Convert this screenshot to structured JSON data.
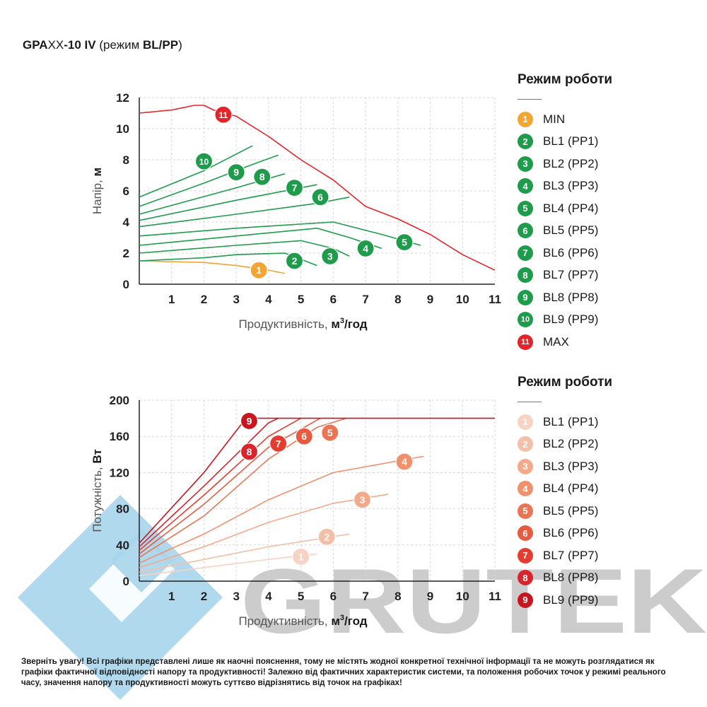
{
  "title": {
    "p1": "GPA",
    "p2": "XX",
    "p3": "-10 IV",
    "p4": " (режим ",
    "p5": "BL/PP",
    "p6": ")"
  },
  "watermark_text": "GRUTEK",
  "note": "Зверніть увагу! Всі графіки представлені лише як наочні пояснення, тому не містять жодної конкретної технічної інформації та не можуть розглядатися як графіки фактичної відповідності напору та продуктивності! Залежно від фактичних характеристик системи, та положення робочих точок у режимі реального часу, значення напору та продуктивності можуть суттєво відрізнятись від точок на графіках!",
  "legend_head": {
    "title": "Режим роботи",
    "items": [
      {
        "num": "1",
        "label": "MIN",
        "color": "#f2a531"
      },
      {
        "num": "2",
        "label": "BL1 (PP1)",
        "color": "#1e9c4b"
      },
      {
        "num": "3",
        "label": "BL2 (PP2)",
        "color": "#1e9c4b"
      },
      {
        "num": "4",
        "label": "BL3 (PP3)",
        "color": "#1e9c4b"
      },
      {
        "num": "5",
        "label": "BL4 (PP4)",
        "color": "#1e9c4b"
      },
      {
        "num": "6",
        "label": "BL5 (PP5)",
        "color": "#1e9c4b"
      },
      {
        "num": "7",
        "label": "BL6 (PP6)",
        "color": "#1e9c4b"
      },
      {
        "num": "8",
        "label": "BL7 (PP7)",
        "color": "#1e9c4b"
      },
      {
        "num": "9",
        "label": "BL8 (PP8)",
        "color": "#1e9c4b"
      },
      {
        "num": "10",
        "label": "BL9 (PP9)",
        "color": "#1e9c4b"
      },
      {
        "num": "11",
        "label": "MAX",
        "color": "#e5242a"
      }
    ]
  },
  "legend_power": {
    "title": "Режим роботи",
    "items": [
      {
        "num": "1",
        "label": "BL1 (PP1)",
        "color": "#f8d3c3"
      },
      {
        "num": "2",
        "label": "BL2 (PP2)",
        "color": "#f5bea6"
      },
      {
        "num": "3",
        "label": "BL3 (PP3)",
        "color": "#f3a98a"
      },
      {
        "num": "4",
        "label": "BL4 (PP4)",
        "color": "#f0906d"
      },
      {
        "num": "5",
        "label": "BL5 (PP5)",
        "color": "#ec7452"
      },
      {
        "num": "6",
        "label": "BL6 (PP6)",
        "color": "#e85a40"
      },
      {
        "num": "7",
        "label": "BL7 (PP7)",
        "color": "#e43d2f"
      },
      {
        "num": "8",
        "label": "BL8 (PP8)",
        "color": "#d8242a"
      },
      {
        "num": "9",
        "label": "BL9 (PP9)",
        "color": "#c8151f"
      }
    ]
  },
  "chart_data": [
    {
      "type": "line",
      "xlabel": "Продуктивність, м³/год",
      "xlabel_plain": "Продуктивність,",
      "xlabel_bold": "м",
      "xlabel_sup": "3",
      "xlabel_unit": "/год",
      "ylabel_plain": "Напір,",
      "ylabel_bold": "м",
      "xlim": [
        0,
        11
      ],
      "ylim": [
        0,
        12
      ],
      "xticks": [
        1,
        2,
        3,
        4,
        5,
        6,
        7,
        8,
        9,
        10,
        11
      ],
      "yticks": [
        0,
        2,
        4,
        6,
        8,
        10,
        12
      ],
      "grid": true,
      "series": [
        {
          "name": "1",
          "color": "#f2a531",
          "marker": [
            3.7,
            0.9
          ],
          "points": [
            [
              0,
              1.5
            ],
            [
              2,
              1.4
            ],
            [
              3,
              1.2
            ],
            [
              4,
              0.9
            ],
            [
              4.5,
              0.7
            ]
          ]
        },
        {
          "name": "2",
          "color": "#1e9c4b",
          "marker": [
            4.8,
            1.5
          ],
          "points": [
            [
              0,
              1.5
            ],
            [
              2,
              1.7
            ],
            [
              3,
              1.9
            ],
            [
              4.5,
              2.0
            ],
            [
              5,
              1.6
            ],
            [
              5.5,
              1.2
            ]
          ]
        },
        {
          "name": "3",
          "color": "#1e9c4b",
          "marker": [
            5.9,
            1.8
          ],
          "points": [
            [
              0,
              2.0
            ],
            [
              3,
              2.5
            ],
            [
              5,
              2.8
            ],
            [
              6,
              2.3
            ],
            [
              6.5,
              1.8
            ]
          ]
        },
        {
          "name": "4",
          "color": "#1e9c4b",
          "marker": [
            7.0,
            2.3
          ],
          "points": [
            [
              0,
              2.5
            ],
            [
              3,
              3.1
            ],
            [
              5.5,
              3.6
            ],
            [
              6.5,
              3.0
            ],
            [
              7.5,
              2.3
            ]
          ]
        },
        {
          "name": "5",
          "color": "#1e9c4b",
          "marker": [
            8.2,
            2.7
          ],
          "points": [
            [
              0,
              3.1
            ],
            [
              3,
              3.6
            ],
            [
              6,
              4.0
            ],
            [
              7.5,
              3.2
            ],
            [
              8.7,
              2.5
            ]
          ]
        },
        {
          "name": "6",
          "color": "#1e9c4b",
          "marker": [
            5.6,
            5.6
          ],
          "points": [
            [
              0,
              3.7
            ],
            [
              3,
              4.5
            ],
            [
              5.5,
              5.2
            ],
            [
              6.5,
              5.6
            ]
          ]
        },
        {
          "name": "7",
          "color": "#1e9c4b",
          "marker": [
            4.8,
            6.2
          ],
          "points": [
            [
              0,
              4.1
            ],
            [
              3,
              5.4
            ],
            [
              5.5,
              6.4
            ]
          ]
        },
        {
          "name": "8",
          "color": "#1e9c4b",
          "marker": [
            3.8,
            6.9
          ],
          "points": [
            [
              0,
              4.5
            ],
            [
              3,
              6.2
            ],
            [
              4.5,
              7.1
            ]
          ]
        },
        {
          "name": "9",
          "color": "#1e9c4b",
          "marker": [
            3.0,
            7.2
          ],
          "points": [
            [
              0,
              5.0
            ],
            [
              2,
              6.5
            ],
            [
              3.5,
              7.7
            ],
            [
              4.3,
              8.3
            ]
          ]
        },
        {
          "name": "10",
          "color": "#1e9c4b",
          "marker": [
            2.0,
            7.9
          ],
          "points": [
            [
              0,
              5.6
            ],
            [
              2,
              7.3
            ],
            [
              3.5,
              8.9
            ]
          ]
        },
        {
          "name": "11",
          "color": "#e5242a",
          "marker": [
            2.6,
            10.9
          ],
          "points": [
            [
              0,
              11.0
            ],
            [
              1,
              11.2
            ],
            [
              1.7,
              11.5
            ],
            [
              2,
              11.5
            ],
            [
              2.3,
              11.2
            ],
            [
              3,
              10.8
            ],
            [
              4,
              9.5
            ],
            [
              5,
              8.0
            ],
            [
              6,
              6.7
            ],
            [
              7,
              5.0
            ],
            [
              8,
              4.2
            ],
            [
              9,
              3.2
            ],
            [
              10,
              1.9
            ],
            [
              11,
              0.9
            ]
          ]
        }
      ]
    },
    {
      "type": "line",
      "xlabel": "Продуктивність, м³/год",
      "xlabel_plain": "Продуктивність,",
      "xlabel_bold": "м",
      "xlabel_sup": "3",
      "xlabel_unit": "/год",
      "ylabel_plain": "Потужність,",
      "ylabel_bold": "Вт",
      "xlim": [
        0,
        11
      ],
      "ylim": [
        0,
        200
      ],
      "xticks": [
        1,
        2,
        3,
        4,
        5,
        6,
        7,
        8,
        9,
        10,
        11
      ],
      "yticks": [
        0,
        40,
        80,
        120,
        160,
        200
      ],
      "grid": true,
      "series": [
        {
          "name": "1",
          "color": "#f8d3c3",
          "marker": [
            5.0,
            27
          ],
          "points": [
            [
              0,
              6
            ],
            [
              2,
              15
            ],
            [
              4,
              24
            ],
            [
              5.5,
              30
            ]
          ]
        },
        {
          "name": "2",
          "color": "#f5bea6",
          "marker": [
            5.8,
            49
          ],
          "points": [
            [
              0,
              10
            ],
            [
              2,
              24
            ],
            [
              4,
              38
            ],
            [
              6.5,
              52
            ]
          ]
        },
        {
          "name": "3",
          "color": "#f3a98a",
          "marker": [
            6.9,
            90
          ],
          "points": [
            [
              0,
              15
            ],
            [
              2,
              38
            ],
            [
              4,
              65
            ],
            [
              6,
              86
            ],
            [
              7.7,
              96
            ]
          ]
        },
        {
          "name": "4",
          "color": "#f0906d",
          "marker": [
            8.2,
            132
          ],
          "points": [
            [
              0,
              20
            ],
            [
              2,
              52
            ],
            [
              4,
              90
            ],
            [
              6,
              120
            ],
            [
              8.8,
              138
            ]
          ]
        },
        {
          "name": "5",
          "color": "#ec7452",
          "marker": [
            5.9,
            164
          ],
          "points": [
            [
              0,
              26
            ],
            [
              2,
              72
            ],
            [
              4,
              135
            ],
            [
              5.5,
              170
            ],
            [
              6.4,
              180
            ]
          ]
        },
        {
          "name": "6",
          "color": "#e85a40",
          "marker": [
            5.1,
            160
          ],
          "points": [
            [
              0,
              30
            ],
            [
              2,
              85
            ],
            [
              4,
              148
            ],
            [
              5.6,
              180
            ]
          ]
        },
        {
          "name": "7",
          "color": "#e43d2f",
          "marker": [
            4.3,
            152
          ],
          "points": [
            [
              0,
              34
            ],
            [
              2,
              95
            ],
            [
              4,
              160
            ],
            [
              5.0,
              180
            ]
          ]
        },
        {
          "name": "8",
          "color": "#d8242a",
          "marker": [
            3.4,
            143
          ],
          "points": [
            [
              0,
              38
            ],
            [
              2,
              105
            ],
            [
              4,
              175
            ],
            [
              4.3,
              180
            ]
          ]
        },
        {
          "name": "9",
          "color": "#c8151f",
          "marker": [
            3.4,
            177
          ],
          "points": [
            [
              0,
              42
            ],
            [
              2,
              120
            ],
            [
              3.3,
              180
            ],
            [
              11,
              180
            ]
          ]
        }
      ]
    }
  ]
}
